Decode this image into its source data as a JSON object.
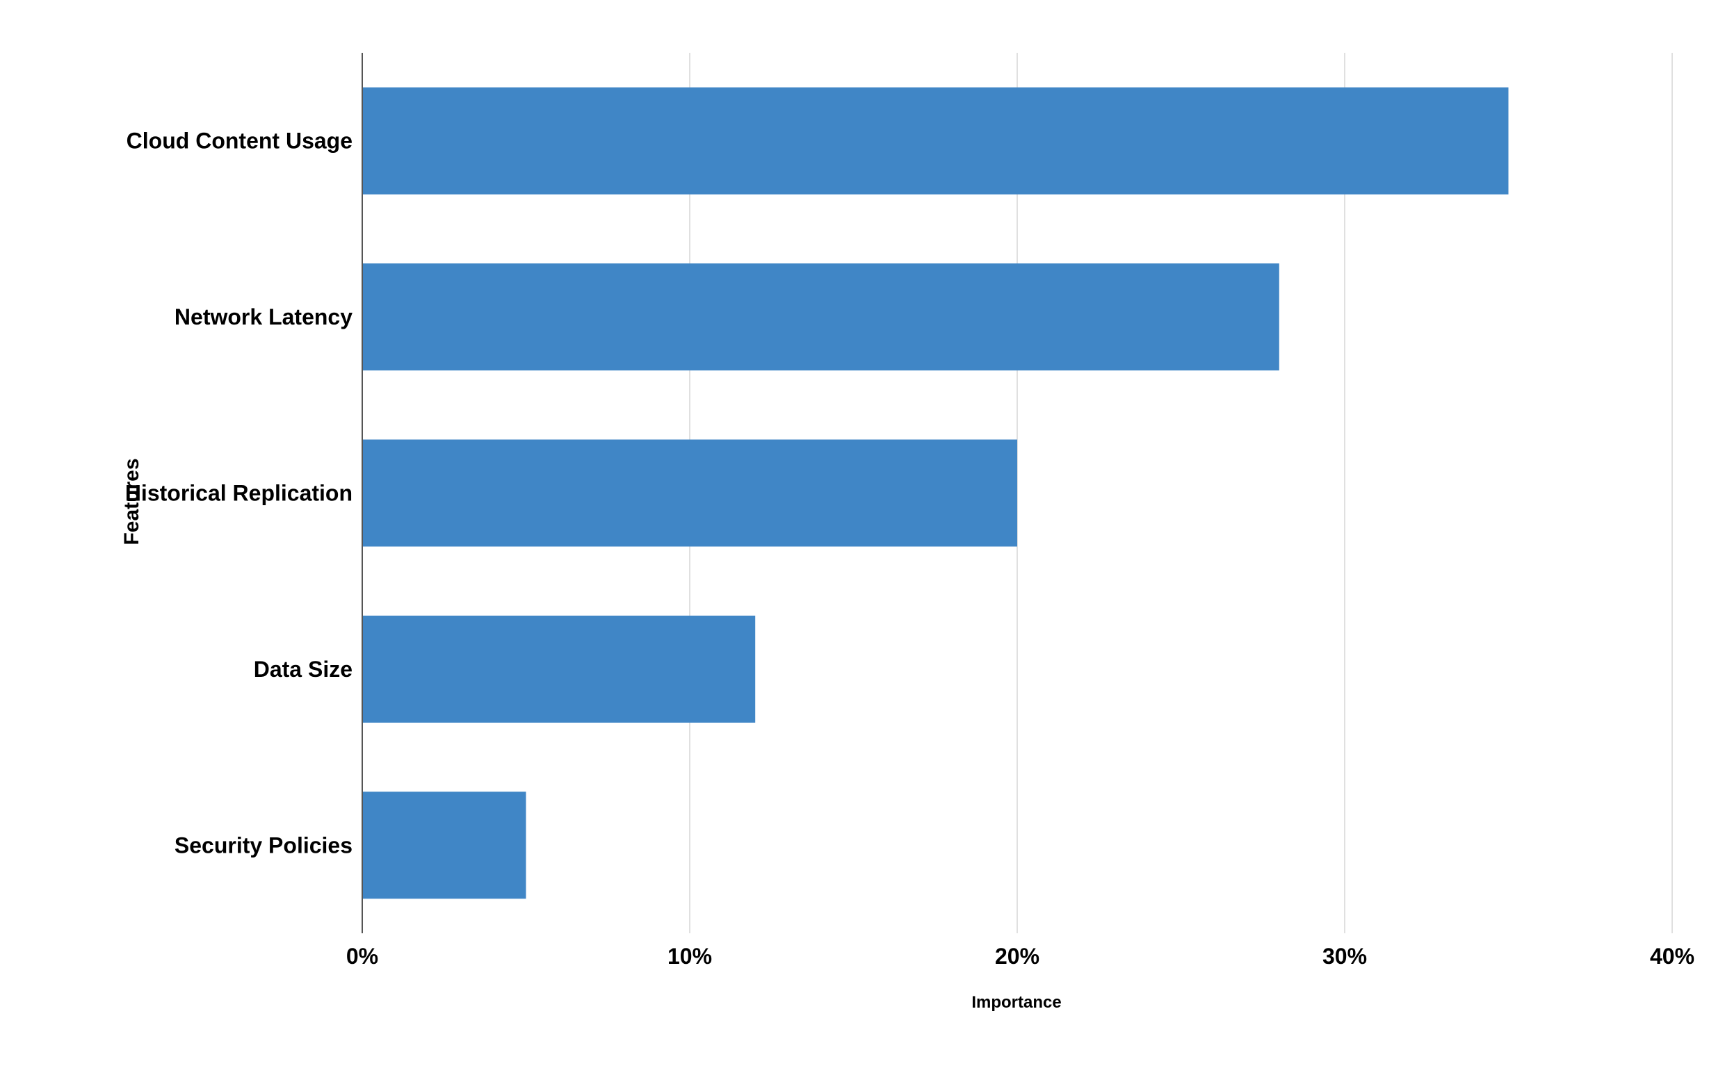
{
  "chart_data": {
    "type": "bar",
    "orientation": "horizontal",
    "categories": [
      "Cloud Content Usage",
      "Network Latency",
      "Historical Replication",
      "Data Size",
      "Security Policies"
    ],
    "values": [
      35,
      28,
      20,
      12,
      5
    ],
    "xlabel": "Importance",
    "ylabel": "Features",
    "xlim": [
      0,
      40
    ],
    "x_ticks": [
      0,
      10,
      20,
      30,
      40
    ],
    "x_tick_labels": [
      "0%",
      "10%",
      "20%",
      "30%",
      "40%"
    ],
    "grid": "vertical",
    "bar_color": "#4086c6",
    "grid_color": "#e0e0e0"
  }
}
